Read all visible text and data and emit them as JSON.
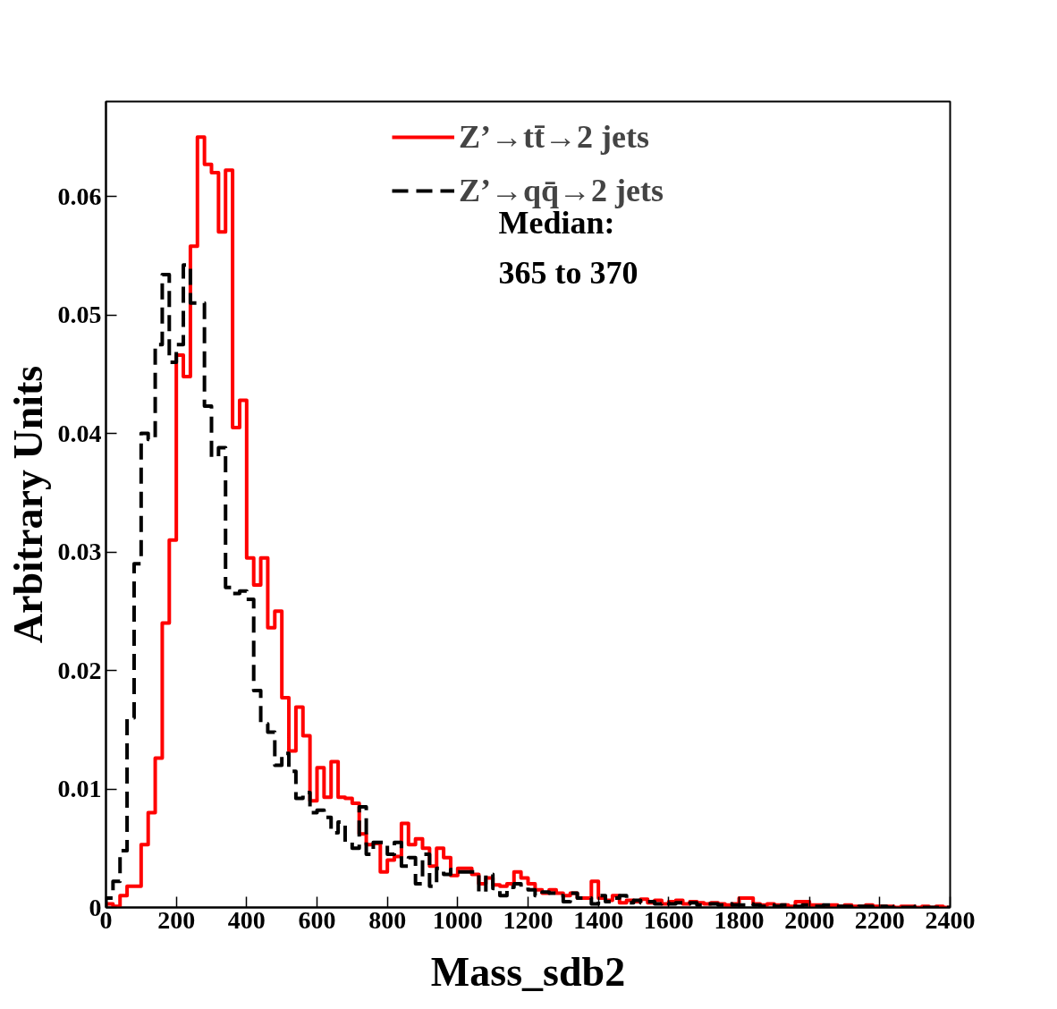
{
  "chart_data": {
    "type": "histogram",
    "xlabel": "Mass_sdb2",
    "ylabel": "Arbitrary Units",
    "annotations": [
      "Median:",
      "365 to 370"
    ],
    "bins": [
      0,
      20,
      40,
      60,
      80,
      100,
      120,
      140,
      160,
      180,
      200,
      220,
      240,
      260,
      280,
      300,
      320,
      340,
      360,
      380,
      400,
      420,
      440,
      460,
      480,
      500,
      520,
      540,
      560,
      580,
      600,
      620,
      640,
      660,
      680,
      700,
      720,
      740,
      760,
      780,
      800,
      820,
      840,
      860,
      880,
      900,
      920,
      940,
      960,
      980,
      1000,
      1020,
      1040,
      1060,
      1080,
      1100,
      1120,
      1140,
      1160,
      1180,
      1200,
      1220,
      1240,
      1260,
      1280,
      1300,
      1320,
      1340,
      1360,
      1380,
      1400,
      1420,
      1440,
      1460,
      1480,
      1500,
      1520,
      1540,
      1560,
      1580,
      1600,
      1620,
      1640,
      1660,
      1680,
      1700,
      1720,
      1740,
      1760,
      1780,
      1800,
      1820,
      1840,
      1860,
      1880,
      1900,
      1920,
      1940,
      1960,
      1980,
      2000,
      2020,
      2040,
      2060,
      2080,
      2100,
      2120,
      2140,
      2160,
      2180,
      2200,
      2220,
      2240,
      2260,
      2280,
      2300,
      2320,
      2340,
      2360,
      2380,
      2400
    ],
    "series": [
      {
        "name": "Z’→tt̄→2 jets",
        "color": "#ff0000",
        "line_style": "solid",
        "values": [
          0.0003,
          0.0001,
          0.001,
          0.0018,
          0.0018,
          0.0053,
          0.008,
          0.0126,
          0.024,
          0.031,
          0.0466,
          0.0448,
          0.0558,
          0.065,
          0.0627,
          0.062,
          0.057,
          0.0622,
          0.0405,
          0.0428,
          0.0295,
          0.0272,
          0.0295,
          0.0236,
          0.025,
          0.0177,
          0.0132,
          0.0169,
          0.0145,
          0.009,
          0.0118,
          0.0093,
          0.0123,
          0.0093,
          0.0092,
          0.0088,
          0.0062,
          0.0053,
          0.0054,
          0.003,
          0.004,
          0.0043,
          0.0071,
          0.0053,
          0.0058,
          0.005,
          0.0035,
          0.005,
          0.0042,
          0.0027,
          0.0033,
          0.0033,
          0.0028,
          0.002,
          0.0025,
          0.0019,
          0.0018,
          0.002,
          0.003,
          0.0025,
          0.002,
          0.0015,
          0.0012,
          0.0015,
          0.0012,
          0.001,
          0.0012,
          0.0008,
          0.0008,
          0.0022,
          0.0008,
          0.0006,
          0.001,
          0.0004,
          0.0006,
          0.0005,
          0.0007,
          0.0004,
          0.0006,
          0.0003,
          0.0005,
          0.0006,
          0.0003,
          0.0005,
          0.0004,
          0.0003,
          0.0004,
          0.0003,
          0.0002,
          0.0003,
          0.0008,
          0.0008,
          0.0003,
          0.0002,
          0.0003,
          0.0002,
          0.0002,
          0.0001,
          0.0005,
          0.0005,
          0.0002,
          0.0002,
          0.0001,
          0.0002,
          0.0001,
          0.0002,
          0.0001,
          0.0001,
          0.0002,
          0.0001,
          0.0001,
          0.0001,
          0.0,
          0.0001,
          0.0001,
          0.0,
          0.0001,
          0.0,
          0.0001,
          0.0
        ]
      },
      {
        "name": "Z’→qq̄→2 jets",
        "color": "#000000",
        "line_style": "dashed",
        "values": [
          0.0008,
          0.0022,
          0.0048,
          0.016,
          0.029,
          0.04,
          0.0395,
          0.0475,
          0.0534,
          0.046,
          0.0475,
          0.0542,
          0.051,
          0.051,
          0.0423,
          0.038,
          0.0388,
          0.027,
          0.0265,
          0.0267,
          0.026,
          0.0183,
          0.0155,
          0.0148,
          0.012,
          0.013,
          0.0115,
          0.0092,
          0.0097,
          0.008,
          0.0082,
          0.0076,
          0.0063,
          0.0072,
          0.0055,
          0.005,
          0.0085,
          0.0045,
          0.0055,
          0.0055,
          0.0045,
          0.0055,
          0.0035,
          0.0042,
          0.002,
          0.0045,
          0.0018,
          0.0033,
          0.0028,
          0.0032,
          0.003,
          0.003,
          0.003,
          0.0013,
          0.0028,
          0.0016,
          0.001,
          0.0017,
          0.002,
          0.0017,
          0.0015,
          0.001,
          0.0013,
          0.0012,
          0.001,
          0.0005,
          0.0012,
          0.0008,
          0.0008,
          0.0003,
          0.001,
          0.0005,
          0.0008,
          0.001,
          0.0004,
          0.0006,
          0.0004,
          0.0005,
          0.0003,
          0.0004,
          0.0003,
          0.0004,
          0.0003,
          0.0004,
          0.0002,
          0.0003,
          0.0003,
          0.0002,
          0.0003,
          0.0002,
          0.0002,
          0.0003,
          0.0002,
          0.0001,
          0.0002,
          0.0001,
          0.0002,
          0.0001,
          0.0001,
          0.0002,
          0.0001,
          0.0001,
          0.0002,
          0.0001,
          0.0001,
          0.0001,
          0.0,
          0.0001,
          0.0001,
          0.0,
          0.0001,
          0.0,
          0.0001,
          0.0,
          0.0,
          0.0001,
          0.0,
          0.0,
          0.0,
          0.0
        ]
      }
    ],
    "xlim": [
      0,
      2400
    ],
    "ylim": [
      0,
      0.068
    ],
    "xticks": [
      0,
      200,
      400,
      600,
      800,
      1000,
      1200,
      1400,
      1600,
      1800,
      2000,
      2200,
      2400
    ],
    "yticks": [
      0,
      0.01,
      0.02,
      0.03,
      0.04,
      0.05,
      0.06
    ],
    "grid": false,
    "legend": "top"
  }
}
